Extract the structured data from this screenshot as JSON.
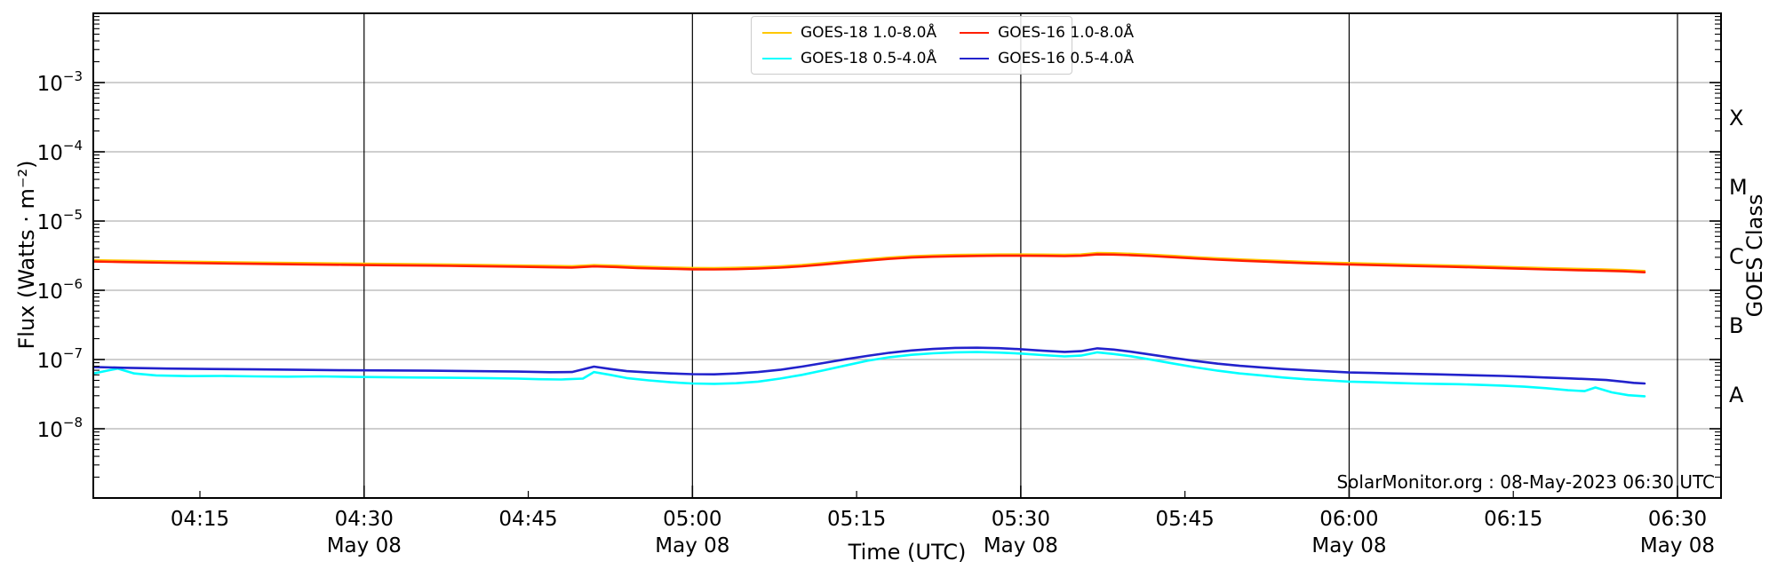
{
  "watermark": "SolarMonitor.org : 08-May-2023 06:30 UTC",
  "axes": {
    "xlabel": "Time (UTC)",
    "ylabel_left": "Flux (Watts · m⁻²)",
    "ylabel_right": "GOES Class",
    "x_major_ticks": [
      {
        "t": 30,
        "label": "04:30",
        "sub": "May 08"
      },
      {
        "t": 60,
        "label": "05:00",
        "sub": "May 08"
      },
      {
        "t": 90,
        "label": "05:30",
        "sub": "May 08"
      },
      {
        "t": 120,
        "label": "06:00",
        "sub": "May 08"
      },
      {
        "t": 150,
        "label": "06:30",
        "sub": "May 08"
      }
    ],
    "x_minor_ticks": [
      {
        "t": 15,
        "label": "04:15"
      },
      {
        "t": 45,
        "label": "04:45"
      },
      {
        "t": 75,
        "label": "05:15"
      },
      {
        "t": 105,
        "label": "05:45"
      },
      {
        "t": 135,
        "label": "06:15"
      }
    ],
    "y_ticks": [
      {
        "exp": -3,
        "base": "10",
        "sup": "−3"
      },
      {
        "exp": -4,
        "base": "10",
        "sup": "−4"
      },
      {
        "exp": -5,
        "base": "10",
        "sup": "−5"
      },
      {
        "exp": -6,
        "base": "10",
        "sup": "−6"
      },
      {
        "exp": -7,
        "base": "10",
        "sup": "−7"
      },
      {
        "exp": -8,
        "base": "10",
        "sup": "−8"
      }
    ],
    "goes_class_ticks": [
      {
        "label": "X",
        "center_exp": -3.5
      },
      {
        "label": "M",
        "center_exp": -4.5
      },
      {
        "label": "C",
        "center_exp": -5.5
      },
      {
        "label": "B",
        "center_exp": -6.5
      },
      {
        "label": "A",
        "center_exp": -7.5
      }
    ]
  },
  "legend": {
    "entries": [
      {
        "label": "GOES-18 1.0-8.0Å",
        "color": "#FFC800"
      },
      {
        "label": "GOES-18 0.5-4.0Å",
        "color": "#00FFFF"
      },
      {
        "label": "GOES-16 1.0-8.0Å",
        "color": "#FF1E00"
      },
      {
        "label": "GOES-16 0.5-4.0Å",
        "color": "#2222CC"
      }
    ]
  },
  "colors": {
    "grid_horizontal": "#b2b2b2",
    "grid_vertical": "#000000",
    "axis": "#000000"
  },
  "chart_data": {
    "type": "line",
    "title": "",
    "xlabel": "Time (UTC)",
    "ylabel": "Flux (Watts · m⁻²)",
    "ylabel_right": "GOES Class",
    "y_scale": "log",
    "ylim": [
      1e-09,
      0.01
    ],
    "x_unit": "minutes after 04:00 UTC, 08-May-2023",
    "xlim_minutes": [
      5.3,
      154.0
    ],
    "grid": {
      "horizontal_decades": true,
      "vertical_30min": true
    },
    "legend_position": "upper center",
    "series": [
      {
        "name": "GOES-18 1.0-8.0Å",
        "color": "#FFC800",
        "points": [
          [
            5.3,
            2.73e-06
          ],
          [
            8,
            2.69e-06
          ],
          [
            12,
            2.63e-06
          ],
          [
            16,
            2.57e-06
          ],
          [
            20,
            2.53e-06
          ],
          [
            24,
            2.49e-06
          ],
          [
            28,
            2.45e-06
          ],
          [
            32,
            2.42e-06
          ],
          [
            36,
            2.38e-06
          ],
          [
            40,
            2.34e-06
          ],
          [
            44,
            2.3e-06
          ],
          [
            47,
            2.26e-06
          ],
          [
            49,
            2.24e-06
          ],
          [
            51,
            2.32e-06
          ],
          [
            53,
            2.28e-06
          ],
          [
            55,
            2.21e-06
          ],
          [
            58,
            2.14e-06
          ],
          [
            60,
            2.11e-06
          ],
          [
            62,
            2.1e-06
          ],
          [
            64,
            2.12e-06
          ],
          [
            66,
            2.16e-06
          ],
          [
            68,
            2.23e-06
          ],
          [
            70,
            2.33e-06
          ],
          [
            72,
            2.48e-06
          ],
          [
            74,
            2.65e-06
          ],
          [
            76,
            2.81e-06
          ],
          [
            78,
            2.98e-06
          ],
          [
            80,
            3.12e-06
          ],
          [
            82,
            3.2e-06
          ],
          [
            84,
            3.26e-06
          ],
          [
            86,
            3.29e-06
          ],
          [
            88,
            3.31e-06
          ],
          [
            90,
            3.31e-06
          ],
          [
            92,
            3.3e-06
          ],
          [
            94,
            3.28e-06
          ],
          [
            95.5,
            3.31e-06
          ],
          [
            97,
            3.47e-06
          ],
          [
            98.5,
            3.44e-06
          ],
          [
            100,
            3.38e-06
          ],
          [
            102,
            3.28e-06
          ],
          [
            104,
            3.15e-06
          ],
          [
            106,
            3.02e-06
          ],
          [
            108,
            2.91e-06
          ],
          [
            110,
            2.81e-06
          ],
          [
            112,
            2.73e-06
          ],
          [
            114,
            2.66e-06
          ],
          [
            116,
            2.59e-06
          ],
          [
            118,
            2.53e-06
          ],
          [
            120,
            2.48e-06
          ],
          [
            123,
            2.42e-06
          ],
          [
            126,
            2.35e-06
          ],
          [
            129,
            2.3e-06
          ],
          [
            132,
            2.24e-06
          ],
          [
            135,
            2.17e-06
          ],
          [
            138,
            2.1e-06
          ],
          [
            141,
            2.05e-06
          ],
          [
            143,
            2.02e-06
          ],
          [
            145,
            1.97e-06
          ],
          [
            147,
            1.91e-06
          ]
        ]
      },
      {
        "name": "GOES-16 1.0-8.0Å",
        "color": "#FF1E00",
        "points": [
          [
            5.3,
            2.6e-06
          ],
          [
            8,
            2.56e-06
          ],
          [
            12,
            2.5e-06
          ],
          [
            16,
            2.45e-06
          ],
          [
            20,
            2.41e-06
          ],
          [
            24,
            2.37e-06
          ],
          [
            28,
            2.33e-06
          ],
          [
            32,
            2.3e-06
          ],
          [
            36,
            2.27e-06
          ],
          [
            40,
            2.23e-06
          ],
          [
            44,
            2.19e-06
          ],
          [
            47,
            2.15e-06
          ],
          [
            49,
            2.13e-06
          ],
          [
            51,
            2.21e-06
          ],
          [
            53,
            2.17e-06
          ],
          [
            55,
            2.1e-06
          ],
          [
            58,
            2.04e-06
          ],
          [
            60,
            2.01e-06
          ],
          [
            62,
            2e-06
          ],
          [
            64,
            2.02e-06
          ],
          [
            66,
            2.06e-06
          ],
          [
            68,
            2.12e-06
          ],
          [
            70,
            2.22e-06
          ],
          [
            72,
            2.36e-06
          ],
          [
            74,
            2.52e-06
          ],
          [
            76,
            2.68e-06
          ],
          [
            78,
            2.84e-06
          ],
          [
            80,
            2.97e-06
          ],
          [
            82,
            3.05e-06
          ],
          [
            84,
            3.1e-06
          ],
          [
            86,
            3.13e-06
          ],
          [
            88,
            3.15e-06
          ],
          [
            90,
            3.15e-06
          ],
          [
            92,
            3.14e-06
          ],
          [
            94,
            3.12e-06
          ],
          [
            95.5,
            3.15e-06
          ],
          [
            97,
            3.3e-06
          ],
          [
            98.5,
            3.28e-06
          ],
          [
            100,
            3.22e-06
          ],
          [
            102,
            3.12e-06
          ],
          [
            104,
            3e-06
          ],
          [
            106,
            2.88e-06
          ],
          [
            108,
            2.77e-06
          ],
          [
            110,
            2.68e-06
          ],
          [
            112,
            2.6e-06
          ],
          [
            114,
            2.53e-06
          ],
          [
            116,
            2.47e-06
          ],
          [
            118,
            2.41e-06
          ],
          [
            120,
            2.36e-06
          ],
          [
            123,
            2.3e-06
          ],
          [
            126,
            2.24e-06
          ],
          [
            129,
            2.19e-06
          ],
          [
            132,
            2.13e-06
          ],
          [
            135,
            2.07e-06
          ],
          [
            138,
            2e-06
          ],
          [
            141,
            1.95e-06
          ],
          [
            143,
            1.92e-06
          ],
          [
            145,
            1.88e-06
          ],
          [
            147,
            1.82e-06
          ]
        ]
      },
      {
        "name": "GOES-18 0.5-4.0Å",
        "color": "#00FFFF",
        "points": [
          [
            5.3,
            6.3e-08
          ],
          [
            6.5,
            6.9e-08
          ],
          [
            7.5,
            7.4e-08
          ],
          [
            9,
            6.3e-08
          ],
          [
            11,
            5.9e-08
          ],
          [
            14,
            5.75e-08
          ],
          [
            17,
            5.8e-08
          ],
          [
            20,
            5.7e-08
          ],
          [
            23,
            5.65e-08
          ],
          [
            26,
            5.7e-08
          ],
          [
            29,
            5.6e-08
          ],
          [
            32,
            5.55e-08
          ],
          [
            35,
            5.5e-08
          ],
          [
            38,
            5.45e-08
          ],
          [
            41,
            5.4e-08
          ],
          [
            44,
            5.3e-08
          ],
          [
            46,
            5.2e-08
          ],
          [
            48,
            5.15e-08
          ],
          [
            50,
            5.3e-08
          ],
          [
            51,
            6.6e-08
          ],
          [
            52.5,
            6e-08
          ],
          [
            54,
            5.4e-08
          ],
          [
            56,
            5e-08
          ],
          [
            58,
            4.7e-08
          ],
          [
            60,
            4.5e-08
          ],
          [
            62,
            4.45e-08
          ],
          [
            64,
            4.55e-08
          ],
          [
            66,
            4.8e-08
          ],
          [
            68,
            5.3e-08
          ],
          [
            70,
            6e-08
          ],
          [
            72,
            7e-08
          ],
          [
            74,
            8.2e-08
          ],
          [
            76,
            9.6e-08
          ],
          [
            78,
            1.08e-07
          ],
          [
            80,
            1.17e-07
          ],
          [
            82,
            1.23e-07
          ],
          [
            84,
            1.27e-07
          ],
          [
            86,
            1.28e-07
          ],
          [
            88,
            1.26e-07
          ],
          [
            90,
            1.22e-07
          ],
          [
            92,
            1.16e-07
          ],
          [
            94,
            1.11e-07
          ],
          [
            95.5,
            1.14e-07
          ],
          [
            97,
            1.27e-07
          ],
          [
            98.5,
            1.2e-07
          ],
          [
            100,
            1.12e-07
          ],
          [
            102,
            9.9e-08
          ],
          [
            104,
            8.7e-08
          ],
          [
            106,
            7.7e-08
          ],
          [
            108,
            6.9e-08
          ],
          [
            110,
            6.3e-08
          ],
          [
            112,
            5.9e-08
          ],
          [
            114,
            5.5e-08
          ],
          [
            116,
            5.2e-08
          ],
          [
            118,
            5e-08
          ],
          [
            120,
            4.8e-08
          ],
          [
            122,
            4.7e-08
          ],
          [
            124,
            4.6e-08
          ],
          [
            126,
            4.5e-08
          ],
          [
            128,
            4.45e-08
          ],
          [
            130,
            4.4e-08
          ],
          [
            132,
            4.3e-08
          ],
          [
            134,
            4.2e-08
          ],
          [
            136,
            4.05e-08
          ],
          [
            138,
            3.85e-08
          ],
          [
            140,
            3.6e-08
          ],
          [
            141.5,
            3.5e-08
          ],
          [
            142.5,
            3.95e-08
          ],
          [
            144,
            3.35e-08
          ],
          [
            145.5,
            3.05e-08
          ],
          [
            147,
            2.95e-08
          ]
        ]
      },
      {
        "name": "GOES-16 0.5-4.0Å",
        "color": "#2222CC",
        "points": [
          [
            5.3,
            7.8e-08
          ],
          [
            8,
            7.6e-08
          ],
          [
            12,
            7.4e-08
          ],
          [
            16,
            7.3e-08
          ],
          [
            20,
            7.2e-08
          ],
          [
            24,
            7.1e-08
          ],
          [
            28,
            7e-08
          ],
          [
            32,
            6.95e-08
          ],
          [
            36,
            6.9e-08
          ],
          [
            40,
            6.8e-08
          ],
          [
            44,
            6.7e-08
          ],
          [
            47,
            6.55e-08
          ],
          [
            49,
            6.6e-08
          ],
          [
            51,
            7.9e-08
          ],
          [
            52.5,
            7.3e-08
          ],
          [
            54,
            6.8e-08
          ],
          [
            56,
            6.5e-08
          ],
          [
            58,
            6.3e-08
          ],
          [
            60,
            6.15e-08
          ],
          [
            62,
            6.1e-08
          ],
          [
            64,
            6.3e-08
          ],
          [
            66,
            6.6e-08
          ],
          [
            68,
            7.1e-08
          ],
          [
            70,
            7.9e-08
          ],
          [
            72,
            8.9e-08
          ],
          [
            74,
            1.01e-07
          ],
          [
            76,
            1.13e-07
          ],
          [
            78,
            1.25e-07
          ],
          [
            80,
            1.35e-07
          ],
          [
            82,
            1.42e-07
          ],
          [
            84,
            1.47e-07
          ],
          [
            86,
            1.48e-07
          ],
          [
            88,
            1.46e-07
          ],
          [
            90,
            1.41e-07
          ],
          [
            92,
            1.34e-07
          ],
          [
            94,
            1.29e-07
          ],
          [
            95.5,
            1.32e-07
          ],
          [
            97,
            1.45e-07
          ],
          [
            98.5,
            1.39e-07
          ],
          [
            100,
            1.3e-07
          ],
          [
            102,
            1.17e-07
          ],
          [
            104,
            1.05e-07
          ],
          [
            106,
            9.5e-08
          ],
          [
            108,
            8.7e-08
          ],
          [
            110,
            8.1e-08
          ],
          [
            112,
            7.7e-08
          ],
          [
            114,
            7.3e-08
          ],
          [
            116,
            7e-08
          ],
          [
            118,
            6.75e-08
          ],
          [
            120,
            6.5e-08
          ],
          [
            122,
            6.4e-08
          ],
          [
            124,
            6.3e-08
          ],
          [
            126,
            6.2e-08
          ],
          [
            128,
            6.1e-08
          ],
          [
            130,
            6e-08
          ],
          [
            132,
            5.9e-08
          ],
          [
            134,
            5.8e-08
          ],
          [
            136,
            5.65e-08
          ],
          [
            138,
            5.5e-08
          ],
          [
            140,
            5.35e-08
          ],
          [
            142,
            5.2e-08
          ],
          [
            143.5,
            5.05e-08
          ],
          [
            145,
            4.8e-08
          ],
          [
            146,
            4.6e-08
          ],
          [
            147,
            4.5e-08
          ]
        ]
      }
    ]
  }
}
